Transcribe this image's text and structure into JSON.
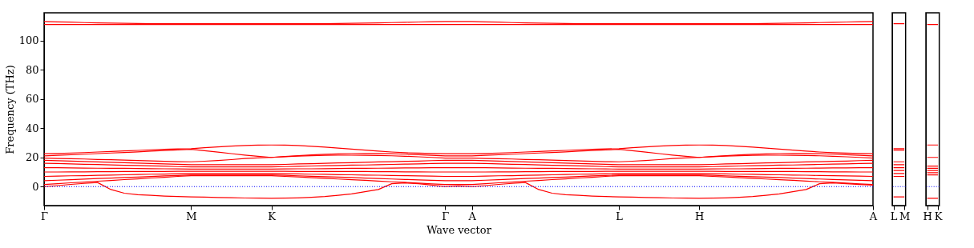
{
  "chart_data": [
    {
      "type": "line",
      "xlabel": "Wave vector",
      "ylabel": "Frequency (THz)",
      "ylim": [
        -13,
        119
      ],
      "yticks": [
        0,
        20,
        40,
        60,
        80,
        100
      ],
      "categories": [
        "Γ",
        null,
        null,
        null,
        null,
        null,
        null,
        null,
        null,
        null,
        null,
        "M",
        null,
        null,
        null,
        null,
        null,
        "K",
        null,
        null,
        null,
        null,
        null,
        null,
        null,
        null,
        null,
        null,
        null,
        null,
        "Γ",
        null,
        "A",
        null,
        null,
        null,
        null,
        null,
        null,
        null,
        null,
        null,
        null,
        "L",
        null,
        null,
        null,
        null,
        null,
        "H",
        null,
        null,
        null,
        null,
        null,
        null,
        null,
        null,
        null,
        null,
        null,
        null,
        "A"
      ],
      "grid": false,
      "legend": false,
      "line_style": "solid",
      "marker": "none",
      "ref_lines": [
        {
          "axis": "y",
          "value": 0,
          "color": "#0000ff",
          "line_style": "dotted"
        }
      ],
      "series": [
        {
          "color": "#ff0000",
          "values": [
            113,
            112.8,
            112.6,
            112.3,
            112.1,
            111.9,
            111.8,
            111.7,
            111.6,
            111.5,
            111.5,
            111.5,
            111.5,
            111.5,
            111.5,
            111.5,
            111.5,
            111.5,
            111.5,
            111.5,
            111.5,
            111.6,
            111.7,
            111.8,
            111.9,
            112.1,
            112.3,
            112.5,
            112.7,
            112.9,
            113,
            113,
            113,
            112.8,
            112.6,
            112.3,
            112.1,
            111.9,
            111.8,
            111.7,
            111.6,
            111.5,
            111.5,
            111.5,
            111.5,
            111.5,
            111.5,
            111.5,
            111.5,
            111.5,
            111.5,
            111.5,
            111.5,
            111.6,
            111.7,
            111.8,
            111.9,
            112.1,
            112.3,
            112.5,
            112.7,
            112.9,
            113
          ]
        },
        {
          "color": "#ff0000",
          "values": [
            111,
            111,
            111,
            111,
            111,
            111,
            111,
            111,
            111,
            111,
            111,
            111,
            111,
            111,
            111,
            111,
            111,
            111,
            111,
            111,
            111,
            111,
            111,
            111,
            111,
            111,
            111,
            111,
            111,
            111,
            111,
            111,
            111,
            111,
            111,
            111,
            111,
            111,
            111,
            111,
            111,
            111,
            111,
            111,
            111,
            111,
            111,
            111,
            111,
            111,
            111,
            111,
            111,
            111,
            111,
            111,
            111,
            111,
            111,
            111,
            111,
            111,
            111
          ]
        },
        {
          "color": "#ff0000",
          "values": [
            22.5,
            22.7,
            23,
            23.3,
            23.7,
            24,
            24.4,
            24.8,
            25.2,
            25.5,
            25.8,
            26,
            26.6,
            27.2,
            27.7,
            28.1,
            28.4,
            28.5,
            28.4,
            28.1,
            27.6,
            27,
            26.4,
            25.7,
            25,
            24.3,
            23.7,
            23.2,
            22.9,
            22.7,
            22.5,
            22.5,
            22.5,
            22.7,
            23,
            23.3,
            23.7,
            24,
            24.4,
            24.8,
            25.2,
            25.5,
            25.8,
            26,
            26.6,
            27.2,
            27.7,
            28.1,
            28.4,
            28.5,
            28.4,
            28.1,
            27.6,
            27,
            26.4,
            25.7,
            25,
            24.3,
            23.7,
            23.2,
            22.9,
            22.7,
            22.5
          ]
        },
        {
          "color": "#ff0000",
          "values": [
            21,
            21.4,
            21.8,
            22.2,
            22.6,
            23,
            23.4,
            23.8,
            24.3,
            24.7,
            25.1,
            25.5,
            24.6,
            23.6,
            22.6,
            21.6,
            20.7,
            20,
            20.6,
            21.2,
            21.7,
            22.1,
            22.4,
            22.6,
            22.7,
            22.7,
            22.5,
            22.2,
            21.8,
            21.4,
            21,
            21,
            21,
            21.4,
            21.8,
            22.2,
            22.6,
            23,
            23.4,
            23.8,
            24.3,
            24.7,
            25.1,
            25.5,
            24.6,
            23.6,
            22.6,
            21.6,
            20.7,
            20,
            20.6,
            21.2,
            21.7,
            22.1,
            22.4,
            22.6,
            22.7,
            22.7,
            22.5,
            22.2,
            21.8,
            21.4,
            21
          ]
        },
        {
          "color": "#ff0000",
          "values": [
            19.5,
            19.3,
            19.1,
            18.9,
            18.6,
            18.4,
            18.1,
            17.9,
            17.6,
            17.3,
            17.1,
            17,
            17.4,
            17.9,
            18.5,
            19.2,
            19.7,
            20,
            20.5,
            20.9,
            21.2,
            21.4,
            21.5,
            21.5,
            21.4,
            21.3,
            21.1,
            20.8,
            20.4,
            20,
            19.5,
            19.5,
            19.5,
            19.3,
            19.1,
            18.9,
            18.6,
            18.4,
            18.1,
            17.9,
            17.6,
            17.3,
            17.1,
            17,
            17.4,
            17.9,
            18.5,
            19.2,
            19.7,
            20,
            20.5,
            20.9,
            21.2,
            21.4,
            21.5,
            21.5,
            21.4,
            21.3,
            21.1,
            20.8,
            20.4,
            20,
            19.5
          ]
        },
        {
          "color": "#ff0000",
          "values": [
            0,
            0.7,
            1.5,
            2.2,
            2.8,
            -2,
            -4.5,
            -5.5,
            -6,
            -6.5,
            -6.8,
            -7,
            -7.2,
            -7.4,
            -7.6,
            -7.8,
            -7.9,
            -8,
            -7.9,
            -7.7,
            -7.3,
            -6.8,
            -6,
            -5,
            -3.5,
            -2,
            2,
            2.5,
            2,
            1,
            0,
            0.5,
            0,
            0.7,
            1.5,
            2.2,
            2.8,
            -2,
            -4.5,
            -5.5,
            -6,
            -6.5,
            -6.8,
            -7,
            -7.2,
            -7.4,
            -7.6,
            -7.8,
            -7.9,
            -8,
            -7.9,
            -7.7,
            -7.3,
            -6.8,
            -6,
            -5,
            -3.5,
            -2,
            2,
            2.5,
            2,
            1.5,
            1
          ]
        },
        {
          "color": "#ff0000",
          "values": [
            18,
            17.7,
            17.5,
            17.2,
            16.9,
            16.6,
            16.4,
            16.1,
            15.8,
            15.5,
            15.3,
            15,
            15,
            15,
            15,
            15,
            15,
            15,
            15.2,
            15.5,
            15.7,
            16,
            16.2,
            16.4,
            16.6,
            16.9,
            17.1,
            17.3,
            17.5,
            17.8,
            18,
            18,
            18,
            17.7,
            17.5,
            17.2,
            16.9,
            16.6,
            16.4,
            16.1,
            15.8,
            15.5,
            15.3,
            15,
            15,
            15,
            15,
            15,
            15,
            15,
            15.2,
            15.5,
            15.7,
            16,
            16.2,
            16.4,
            16.6,
            16.9,
            17.1,
            17.3,
            17.5,
            17.8,
            18
          ]
        },
        {
          "color": "#ff0000",
          "values": [
            16,
            15.8,
            15.5,
            15.3,
            15.1,
            14.9,
            14.6,
            14.4,
            14.2,
            14,
            13.7,
            13.5,
            13.5,
            13.5,
            13.5,
            13.5,
            13.5,
            13.5,
            13.7,
            13.9,
            14.1,
            14.3,
            14.5,
            14.7,
            14.8,
            15,
            15.2,
            15.4,
            15.6,
            15.8,
            16,
            16,
            16,
            15.8,
            15.5,
            15.3,
            15.1,
            14.9,
            14.6,
            14.4,
            14.2,
            14,
            13.7,
            13.5,
            13.5,
            13.5,
            13.5,
            13.5,
            13.5,
            13.5,
            13.7,
            13.9,
            14.1,
            14.3,
            14.5,
            14.7,
            14.8,
            15,
            15.2,
            15.4,
            15.6,
            15.8,
            16
          ]
        },
        {
          "color": "#ff0000",
          "values": [
            13,
            12.9,
            12.8,
            12.7,
            12.6,
            12.5,
            12.5,
            12.4,
            12.3,
            12.2,
            12.1,
            12,
            12,
            12,
            12,
            12,
            12,
            12,
            12.1,
            12.2,
            12.2,
            12.3,
            12.4,
            12.5,
            12.5,
            12.6,
            12.7,
            12.8,
            12.8,
            12.9,
            13,
            13,
            13,
            12.9,
            12.8,
            12.7,
            12.6,
            12.5,
            12.5,
            12.4,
            12.3,
            12.2,
            12.1,
            12,
            12,
            12,
            12,
            12,
            12,
            12,
            12.1,
            12.2,
            12.2,
            12.3,
            12.4,
            12.5,
            12.5,
            12.6,
            12.7,
            12.8,
            12.8,
            12.9,
            13
          ]
        },
        {
          "color": "#ff0000",
          "values": [
            10,
            10,
            10.1,
            10.1,
            10.2,
            10.2,
            10.3,
            10.3,
            10.4,
            10.4,
            10.5,
            10.5,
            10.5,
            10.5,
            10.5,
            10.5,
            10.5,
            10.5,
            10.5,
            10.4,
            10.4,
            10.4,
            10.3,
            10.3,
            10.3,
            10.2,
            10.2,
            10.1,
            10.1,
            10,
            10,
            10,
            10,
            10,
            10.1,
            10.1,
            10.2,
            10.2,
            10.3,
            10.3,
            10.4,
            10.4,
            10.5,
            10.5,
            10.5,
            10.5,
            10.5,
            10.5,
            10.5,
            10.5,
            10.5,
            10.4,
            10.4,
            10.4,
            10.3,
            10.3,
            10.3,
            10.2,
            10.2,
            10.1,
            10.1,
            10,
            10
          ]
        },
        {
          "color": "#ff0000",
          "values": [
            7,
            7.2,
            7.4,
            7.5,
            7.7,
            7.9,
            8.1,
            8.3,
            8.5,
            8.6,
            8.8,
            9,
            9,
            9,
            9,
            9,
            9,
            9,
            8.8,
            8.7,
            8.5,
            8.4,
            8.2,
            8.1,
            7.9,
            7.8,
            7.6,
            7.5,
            7.3,
            7.2,
            7,
            7,
            7,
            7.2,
            7.4,
            7.5,
            7.7,
            7.9,
            8.1,
            8.3,
            8.5,
            8.6,
            8.8,
            9,
            9,
            9,
            9,
            9,
            9,
            9,
            8.8,
            8.7,
            8.5,
            8.4,
            8.2,
            8.1,
            7.9,
            7.8,
            7.6,
            7.5,
            7.3,
            7.2,
            7
          ]
        },
        {
          "color": "#ff0000",
          "values": [
            4,
            4.4,
            4.7,
            5.1,
            5.5,
            5.8,
            6.2,
            6.5,
            6.9,
            7.3,
            7.6,
            8,
            8,
            8,
            8,
            8,
            8,
            8,
            7.7,
            7.4,
            7.1,
            6.8,
            6.5,
            6.2,
            5.8,
            5.5,
            5.2,
            4.9,
            4.6,
            4.3,
            4,
            4,
            4,
            4.4,
            4.7,
            5.1,
            5.5,
            5.8,
            6.2,
            6.5,
            6.9,
            7.3,
            7.6,
            8,
            8,
            8,
            8,
            8,
            8,
            8,
            7.7,
            7.4,
            7.1,
            6.8,
            6.5,
            6.2,
            5.8,
            5.5,
            5.2,
            4.9,
            4.6,
            4.3,
            4
          ]
        },
        {
          "color": "#ff0000",
          "values": [
            1.5,
            2,
            2.6,
            3.1,
            3.7,
            4.2,
            4.8,
            5.3,
            5.9,
            6.4,
            7,
            7.5,
            7.5,
            7.5,
            7.5,
            7.5,
            7.5,
            7.5,
            7,
            6.6,
            6.1,
            5.7,
            5.2,
            4.7,
            4.3,
            3.8,
            3.3,
            2.9,
            2.4,
            1.9,
            1.5,
            1.5,
            1.5,
            2,
            2.6,
            3.1,
            3.7,
            4.2,
            4.8,
            5.3,
            5.9,
            6.4,
            7,
            7.5,
            7.5,
            7.5,
            7.5,
            7.5,
            7.5,
            7.5,
            7,
            6.6,
            6.1,
            5.7,
            5.2,
            4.7,
            4.3,
            3.8,
            3.3,
            2.9,
            2.4,
            1.9,
            1.5
          ]
        }
      ]
    },
    {
      "type": "line",
      "ylim": [
        -13,
        119
      ],
      "yticks": [
        0,
        20,
        40,
        60,
        80,
        100
      ],
      "tick_labels": "x",
      "categories": [
        "L",
        "M"
      ],
      "grid": false,
      "legend": false,
      "line_style": "solid",
      "marker": "none",
      "ref_lines": [
        {
          "axis": "y",
          "value": 0,
          "color": "#0000ff",
          "line_style": "dotted"
        }
      ],
      "series": [
        {
          "color": "#ff0000",
          "values": [
            111.5,
            111.5
          ]
        },
        {
          "color": "#ff0000",
          "values": [
            26,
            26
          ]
        },
        {
          "color": "#ff0000",
          "values": [
            25,
            25
          ]
        },
        {
          "color": "#ff0000",
          "values": [
            17,
            17
          ]
        },
        {
          "color": "#ff0000",
          "values": [
            15,
            15
          ]
        },
        {
          "color": "#ff0000",
          "values": [
            13,
            13
          ]
        },
        {
          "color": "#ff0000",
          "values": [
            11,
            11
          ]
        },
        {
          "color": "#ff0000",
          "values": [
            9,
            9
          ]
        },
        {
          "color": "#ff0000",
          "values": [
            7,
            7
          ]
        },
        {
          "color": "#ff0000",
          "values": [
            -7,
            -7
          ]
        }
      ]
    },
    {
      "type": "line",
      "ylim": [
        -13,
        119
      ],
      "yticks": [
        0,
        20,
        40,
        60,
        80,
        100
      ],
      "tick_labels": "x",
      "categories": [
        "H",
        "K"
      ],
      "grid": false,
      "legend": false,
      "line_style": "solid",
      "marker": "none",
      "ref_lines": [
        {
          "axis": "y",
          "value": 0,
          "color": "#0000ff",
          "line_style": "dotted"
        }
      ],
      "series": [
        {
          "color": "#ff0000",
          "values": [
            111,
            111
          ]
        },
        {
          "color": "#ff0000",
          "values": [
            28.5,
            28.5
          ]
        },
        {
          "color": "#ff0000",
          "values": [
            20,
            20
          ]
        },
        {
          "color": "#ff0000",
          "values": [
            14,
            14
          ]
        },
        {
          "color": "#ff0000",
          "values": [
            12.5,
            12.5
          ]
        },
        {
          "color": "#ff0000",
          "values": [
            11,
            11
          ]
        },
        {
          "color": "#ff0000",
          "values": [
            9.5,
            9.5
          ]
        },
        {
          "color": "#ff0000",
          "values": [
            8,
            8
          ]
        },
        {
          "color": "#ff0000",
          "values": [
            -8,
            -8
          ]
        }
      ]
    }
  ]
}
